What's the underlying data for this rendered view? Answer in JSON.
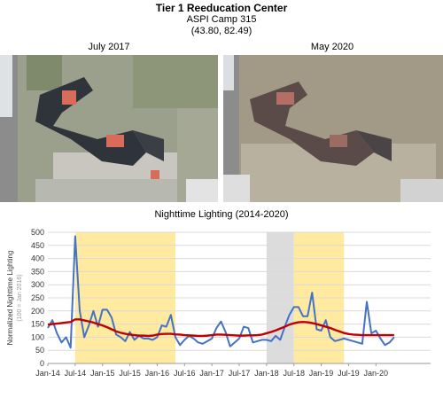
{
  "header": {
    "title": "Tier 1 Reeducation Center",
    "subtitle": "ASPI Camp 315",
    "coords": "(43.80, 82.49)"
  },
  "images": {
    "left_label": "July 2017",
    "right_label": "May 2020"
  },
  "colors": {
    "series_raw": "#4472c4",
    "series_smooth": "#c00000",
    "highlight_yellow": "#ffeaa0",
    "highlight_gray": "#dcdcdc",
    "grid": "#d9d9d9"
  },
  "chart_data": {
    "type": "line",
    "title": "Nighttime Lighting (2014-2020)",
    "ylabel": "Normalized Nighttime Lighting",
    "ylabel_sub": "(100 = Jan 2016)",
    "ylim": [
      0,
      500
    ],
    "yticks": [
      0,
      50,
      100,
      150,
      200,
      250,
      300,
      350,
      400,
      450,
      500
    ],
    "grid": true,
    "xlim": [
      0,
      84
    ],
    "xtick_positions": [
      0,
      6,
      12,
      18,
      24,
      30,
      36,
      42,
      48,
      54,
      60,
      66,
      72,
      78
    ],
    "xtick_labels": [
      "Jan-14",
      "Jul-14",
      "Jan-15",
      "Jul-15",
      "Jan-16",
      "Jul-16",
      "Jan-17",
      "Jul-17",
      "Jan-18",
      "Jul-18",
      "Jan-19",
      "Jul-19",
      "Jan-20",
      ""
    ],
    "xtick_label_list": [
      "Jan-14",
      "Jul-14",
      "Jan-15",
      "Jul-15",
      "Jan-16",
      "Jul-16",
      "Jan-17",
      "Jul-17",
      "Jan-18",
      "Jul-18",
      "Jan-19",
      "Jul-19",
      "Jan-20"
    ],
    "shaded_regions": [
      {
        "start": 6,
        "end": 28,
        "color": "yellow"
      },
      {
        "start": 48,
        "end": 54,
        "color": "gray"
      },
      {
        "start": 54,
        "end": 65,
        "color": "yellow"
      }
    ],
    "series": [
      {
        "values": [
          135,
          165,
          115,
          80,
          100,
          60,
          485,
          200,
          100,
          145,
          200,
          140,
          205,
          205,
          175,
          110,
          100,
          85,
          120,
          90,
          105,
          95,
          95,
          90,
          100,
          145,
          140,
          185,
          100,
          70,
          90,
          105,
          95,
          80,
          75,
          85,
          95,
          135,
          160,
          120,
          65,
          80,
          95,
          140,
          135,
          80,
          85,
          90,
          90,
          85,
          105,
          90,
          140,
          185,
          215,
          215,
          180,
          180,
          270,
          130,
          125,
          165,
          100,
          85,
          90,
          95,
          90,
          85,
          80,
          75,
          235,
          115,
          125,
          95,
          70,
          80,
          100
        ]
      },
      {
        "values": [
          148,
          150,
          152,
          154,
          156,
          158,
          168,
          168,
          164,
          160,
          156,
          150,
          145,
          138,
          130,
          122,
          117,
          113,
          110,
          108,
          106,
          106,
          105,
          106,
          110,
          112,
          113,
          113,
          111,
          110,
          108,
          107,
          106,
          105,
          105,
          106,
          108,
          110,
          110,
          109,
          108,
          107,
          106,
          106,
          107,
          107,
          108,
          110,
          115,
          120,
          126,
          133,
          140,
          148,
          153,
          157,
          158,
          157,
          154,
          150,
          145,
          140,
          135,
          128,
          122,
          116,
          112,
          110,
          109,
          108,
          108,
          108,
          108,
          108,
          108,
          108,
          108
        ]
      }
    ]
  }
}
